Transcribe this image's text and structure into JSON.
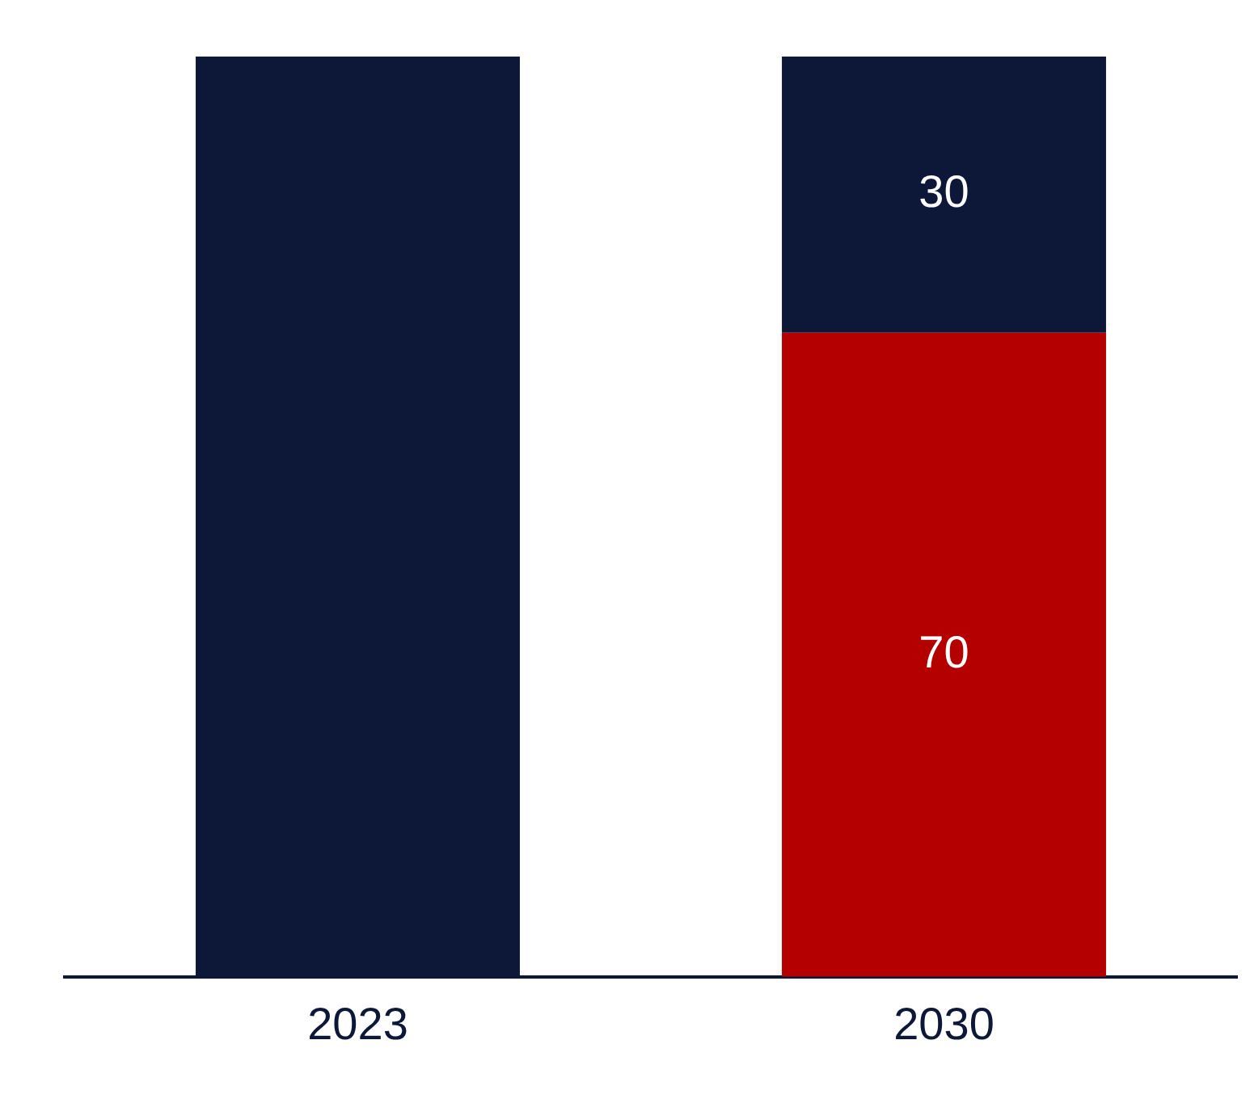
{
  "chart_data": {
    "type": "bar",
    "stacked": true,
    "categories": [
      "2023",
      "2030"
    ],
    "series": [
      {
        "color": "#b50000",
        "values": [
          null,
          70
        ],
        "value_labels": [
          null,
          "70"
        ]
      },
      {
        "color": "#0d1738",
        "values": [
          100,
          30
        ],
        "value_labels": [
          null,
          "30"
        ]
      }
    ],
    "ylim": [
      0,
      100
    ],
    "tick_labels": "x"
  }
}
